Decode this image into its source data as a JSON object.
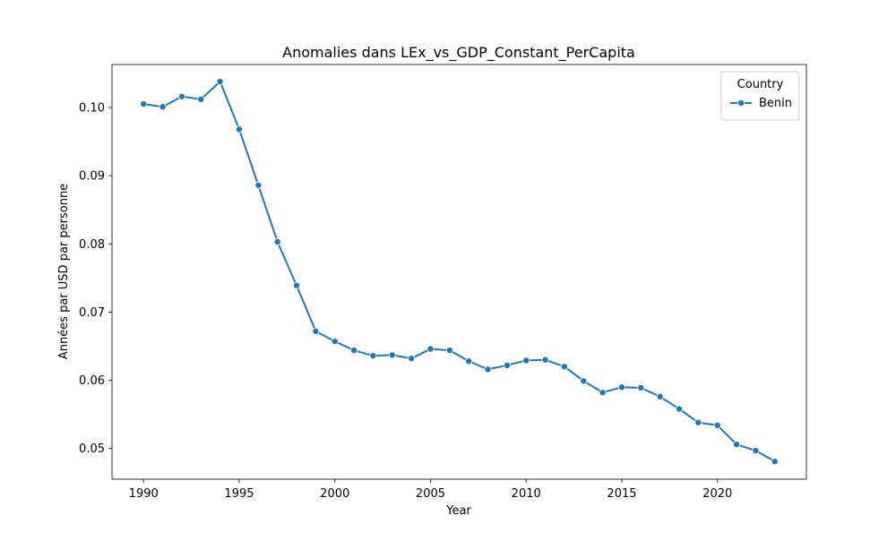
{
  "chart_data": {
    "type": "line",
    "title": "Anomalies dans LEx_vs_GDP_Constant_PerCapita",
    "xlabel": "Year",
    "ylabel": "Années par USD par personne",
    "xlim": [
      1988.35,
      2024.65
    ],
    "ylim": [
      0.0455,
      0.1063
    ],
    "x_ticks": [
      1990,
      1995,
      2000,
      2005,
      2010,
      2015,
      2020
    ],
    "y_ticks": [
      0.05,
      0.06,
      0.07,
      0.08,
      0.09,
      0.1
    ],
    "y_tick_labels": [
      "0.05",
      "0.06",
      "0.07",
      "0.08",
      "0.09",
      "0.10"
    ],
    "legend": {
      "title": "Country",
      "position": "top-right"
    },
    "series": [
      {
        "name": "Benin",
        "color": "#1f77b4",
        "marker": "circle",
        "x": [
          1990,
          1991,
          1992,
          1993,
          1994,
          1995,
          1996,
          1997,
          1998,
          1999,
          2000,
          2001,
          2002,
          2003,
          2004,
          2005,
          2006,
          2007,
          2008,
          2009,
          2010,
          2011,
          2012,
          2013,
          2014,
          2015,
          2016,
          2017,
          2018,
          2019,
          2020,
          2021,
          2022,
          2023
        ],
        "values": [
          0.1005,
          0.1001,
          0.1016,
          0.1012,
          0.1038,
          0.0968,
          0.0886,
          0.0803,
          0.0739,
          0.0672,
          0.0657,
          0.0644,
          0.0636,
          0.0637,
          0.0632,
          0.0646,
          0.0644,
          0.0628,
          0.0616,
          0.0622,
          0.0629,
          0.063,
          0.062,
          0.0599,
          0.0582,
          0.059,
          0.0589,
          0.0576,
          0.0558,
          0.0538,
          0.0534,
          0.0506,
          0.0497,
          0.0481
        ]
      }
    ],
    "grid": false
  }
}
